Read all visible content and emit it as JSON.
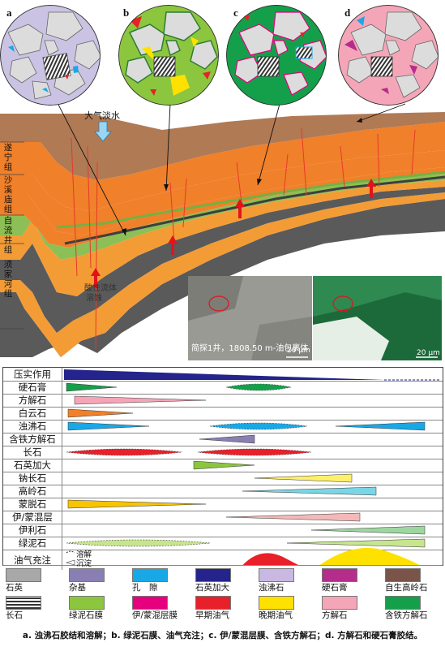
{
  "circle_labels": [
    "a",
    "b",
    "c",
    "d"
  ],
  "section": {
    "water_label": "大气淡水",
    "formations": [
      "遂宁组",
      "沙溪庙组",
      "自流井组",
      "须家河组"
    ],
    "fluid_label": "酸性流体",
    "fluid_label2": "溶蚀",
    "micro_caption": "简探1井，1808.50 m-油包裹体",
    "scale_left": "20 μm",
    "scale_right": "20 μm"
  },
  "timeline": {
    "rows": [
      {
        "label": "压实作用",
        "shape": "compaction"
      },
      {
        "label": "硬石膏",
        "shape": "gypsum"
      },
      {
        "label": "方解石",
        "shape": "calcite"
      },
      {
        "label": "白云石",
        "shape": "dolomite"
      },
      {
        "label": "浊沸石",
        "shape": "laumontite"
      },
      {
        "label": "含铁方解石",
        "shape": "fecalcite"
      },
      {
        "label": "长石",
        "shape": "feldspar"
      },
      {
        "label": "石英加大",
        "shape": "quartz"
      },
      {
        "label": "钠长石",
        "shape": "albite"
      },
      {
        "label": "高岭石",
        "shape": "kaolinite"
      },
      {
        "label": "蒙脱石",
        "shape": "montmorillonite"
      },
      {
        "label": "伊/蒙混层",
        "shape": "illsmec"
      },
      {
        "label": "伊利石",
        "shape": "illite"
      },
      {
        "label": "绿泥石",
        "shape": "chlorite"
      },
      {
        "label": "油气充注",
        "shape": "oil"
      }
    ],
    "key_dissolution": "溶解",
    "key_precipitation": "沉淀"
  },
  "legend": [
    {
      "label": "石英",
      "color": "#a8a8a8"
    },
    {
      "label": "杂基",
      "color": "#8a7fb3"
    },
    {
      "label": "孔　隙",
      "color": "#19a8e6"
    },
    {
      "label": "石英加大",
      "color": "#24248c"
    },
    {
      "label": "浊沸石",
      "color": "#c8b8e2"
    },
    {
      "label": "硬石膏",
      "color": "#b52d8a"
    },
    {
      "label": "自生高岭石",
      "color": "#7a5448"
    },
    {
      "label": "长石",
      "color": "striped"
    },
    {
      "label": "绿泥石膜",
      "color": "#8cc63f"
    },
    {
      "label": "伊/蒙混层膜",
      "color": "#e6007e"
    },
    {
      "label": "早期油气",
      "color": "#e8202a"
    },
    {
      "label": "晚期油气",
      "color": "#ffe100"
    },
    {
      "label": "方解石",
      "color": "#f4a6b8"
    },
    {
      "label": "含铁方解石",
      "color": "#14a04a"
    }
  ],
  "caption": "a. 浊沸石胶结和溶解；b. 绿泥石膜、油气充注；c. 伊/蒙混层膜、含铁方解石；d. 方解石和硬石膏胶结。"
}
